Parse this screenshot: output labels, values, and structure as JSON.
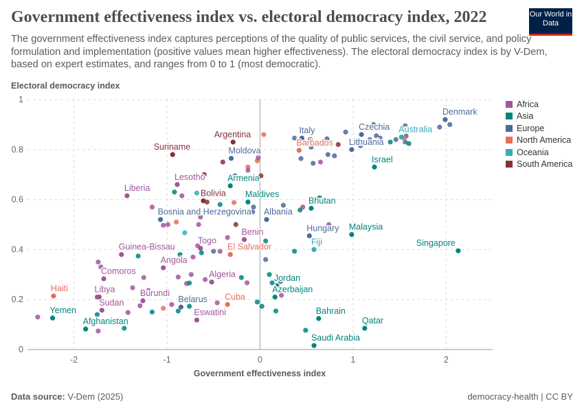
{
  "title": "Government effectiveness index vs. electoral democracy index, 2022",
  "subtitle": "The government effectiveness index captures perceptions of the quality of public services, the civil service, and policy formulation and implementation (positive values mean higher effectiveness). The electoral democracy index is by V-Dem, based on expert estimates, and ranges from 0 to 1 (most democratic).",
  "logo": "Our World in Data",
  "footer": {
    "source_label": "Data source:",
    "source": "V-Dem (2025)",
    "right": "democracy-health | CC BY"
  },
  "chart_data": {
    "type": "scatter",
    "xlabel": "Government effectiveness index",
    "ylabel": "Electoral democracy index",
    "xlim": [
      -2.5,
      2.5
    ],
    "ylim": [
      0,
      1
    ],
    "xticks": [
      "-2",
      "-1",
      "0",
      "1",
      "2"
    ],
    "xtick_values": [
      -2,
      -1,
      0,
      1,
      2
    ],
    "yticks": [
      "0",
      "0.2",
      "0.4",
      "0.6",
      "0.8",
      "1"
    ],
    "ytick_values": [
      0,
      0.2,
      0.4,
      0.6,
      0.8,
      1
    ],
    "grid": true,
    "legend_position": "right",
    "regions": [
      {
        "name": "Africa",
        "color": "#a2559c"
      },
      {
        "name": "Asia",
        "color": "#00847e"
      },
      {
        "name": "Europe",
        "color": "#4c6a9c"
      },
      {
        "name": "North America",
        "color": "#e56e5a"
      },
      {
        "name": "Oceania",
        "color": "#38aaba"
      },
      {
        "name": "South America",
        "color": "#883039"
      }
    ],
    "points": [
      {
        "label": "Denmark",
        "r": "Europe",
        "x": 1.99,
        "y": 0.92
      },
      {
        "label": "Italy",
        "r": "Europe",
        "x": 0.45,
        "y": 0.846
      },
      {
        "label": "Barbados",
        "r": "North America",
        "x": 0.42,
        "y": 0.797
      },
      {
        "label": "Czechia",
        "r": "Europe",
        "x": 1.09,
        "y": 0.86
      },
      {
        "label": "Lithuania",
        "r": "Europe",
        "x": 0.985,
        "y": 0.8
      },
      {
        "label": "Australia",
        "r": "Oceania",
        "x": 1.52,
        "y": 0.85
      },
      {
        "label": "Israel",
        "r": "Asia",
        "x": 1.23,
        "y": 0.73
      },
      {
        "label": "Argentina",
        "r": "South America",
        "x": -0.29,
        "y": 0.83
      },
      {
        "label": "Suriname",
        "r": "South America",
        "x": -0.94,
        "y": 0.78
      },
      {
        "label": "Moldova",
        "r": "Europe",
        "x": -0.31,
        "y": 0.765
      },
      {
        "label": "Lesotho",
        "r": "Africa",
        "x": -0.89,
        "y": 0.66
      },
      {
        "label": "Armenia",
        "r": "Asia",
        "x": -0.32,
        "y": 0.655
      },
      {
        "label": "Liberia",
        "r": "Africa",
        "x": -1.43,
        "y": 0.615
      },
      {
        "label": "Bolivia",
        "r": "South America",
        "x": -0.61,
        "y": 0.595
      },
      {
        "label": "Maldives",
        "r": "Asia",
        "x": -0.13,
        "y": 0.59
      },
      {
        "label": "Bhutan",
        "r": "Asia",
        "x": 0.55,
        "y": 0.565
      },
      {
        "label": "Bosnia and Herzegovina",
        "r": "Europe",
        "x": -1.07,
        "y": 0.52
      },
      {
        "label": "Albania",
        "r": "Europe",
        "x": 0.07,
        "y": 0.52
      },
      {
        "label": "Malaysia",
        "r": "Asia",
        "x": 0.985,
        "y": 0.46
      },
      {
        "label": "Hungary",
        "r": "Europe",
        "x": 0.53,
        "y": 0.455
      },
      {
        "label": "Benin",
        "r": "Africa",
        "x": -0.17,
        "y": 0.44
      },
      {
        "label": "Togo",
        "r": "Africa",
        "x": -0.64,
        "y": 0.405
      },
      {
        "label": "Singapore",
        "r": "Asia",
        "x": 2.13,
        "y": 0.395
      },
      {
        "label": "Fiji",
        "r": "Oceania",
        "x": 0.58,
        "y": 0.4
      },
      {
        "label": "Guinea-Bissau",
        "r": "Africa",
        "x": -1.49,
        "y": 0.38
      },
      {
        "label": "El Salvador",
        "r": "North America",
        "x": -0.32,
        "y": 0.38
      },
      {
        "label": "Angola",
        "r": "Africa",
        "x": -1.04,
        "y": 0.327
      },
      {
        "label": "Comoros",
        "r": "Africa",
        "x": -1.68,
        "y": 0.283
      },
      {
        "label": "Jordan",
        "r": "Asia",
        "x": 0.18,
        "y": 0.255
      },
      {
        "label": "Algeria",
        "r": "Africa",
        "x": -0.52,
        "y": 0.27
      },
      {
        "label": "Azerbaijan",
        "r": "Asia",
        "x": 0.16,
        "y": 0.21
      },
      {
        "label": "Haiti",
        "r": "North America",
        "x": -2.22,
        "y": 0.214
      },
      {
        "label": "Libya",
        "r": "Africa",
        "x": -1.75,
        "y": 0.21
      },
      {
        "label": "Burundi",
        "r": "Africa",
        "x": -1.26,
        "y": 0.195
      },
      {
        "label": "Cuba",
        "r": "North America",
        "x": -0.35,
        "y": 0.18
      },
      {
        "label": "Belarus",
        "r": "Europe",
        "x": -0.85,
        "y": 0.17
      },
      {
        "label": "Sudan",
        "r": "Africa",
        "x": -1.7,
        "y": 0.157
      },
      {
        "label": "Eswatini",
        "r": "Africa",
        "x": -0.68,
        "y": 0.118
      },
      {
        "label": "Yemen",
        "r": "Asia",
        "x": -2.23,
        "y": 0.126
      },
      {
        "label": "Bahrain",
        "r": "Asia",
        "x": 0.63,
        "y": 0.124
      },
      {
        "label": "Afghanistan",
        "r": "Asia",
        "x": -1.875,
        "y": 0.082
      },
      {
        "label": "Qatar",
        "r": "Asia",
        "x": 1.125,
        "y": 0.085
      },
      {
        "label": "Saudi Arabia",
        "r": "Asia",
        "x": 0.58,
        "y": 0.016
      },
      {
        "r": "Europe",
        "x": 2.04,
        "y": 0.9
      },
      {
        "r": "Europe",
        "x": 1.93,
        "y": 0.89
      },
      {
        "r": "Europe",
        "x": 1.56,
        "y": 0.895
      },
      {
        "r": "Europe",
        "x": 1.22,
        "y": 0.9
      },
      {
        "r": "Europe",
        "x": 1.33,
        "y": 0.895
      },
      {
        "r": "Europe",
        "x": 0.92,
        "y": 0.87
      },
      {
        "r": "Europe",
        "x": 1.25,
        "y": 0.855
      },
      {
        "r": "Europe",
        "x": 1.29,
        "y": 0.846
      },
      {
        "r": "Europe",
        "x": 1.18,
        "y": 0.84
      },
      {
        "r": "Europe",
        "x": 1.46,
        "y": 0.84
      },
      {
        "r": "Europe",
        "x": 1.57,
        "y": 0.854
      },
      {
        "r": "Europe",
        "x": 1.56,
        "y": 0.83
      },
      {
        "r": "Asia",
        "x": 1.4,
        "y": 0.83
      },
      {
        "r": "Asia",
        "x": 1.6,
        "y": 0.824
      },
      {
        "r": "Europe",
        "x": 1.08,
        "y": 0.815
      },
      {
        "r": "Europe",
        "x": 0.72,
        "y": 0.843
      },
      {
        "r": "Europe",
        "x": 0.37,
        "y": 0.846
      },
      {
        "r": "Europe",
        "x": 0.55,
        "y": 0.81
      },
      {
        "r": "Europe",
        "x": 0.73,
        "y": 0.78
      },
      {
        "r": "Europe",
        "x": 0.8,
        "y": 0.775
      },
      {
        "r": "Europe",
        "x": 0.44,
        "y": 0.764
      },
      {
        "r": "Europe",
        "x": 0.57,
        "y": 0.745
      },
      {
        "r": "South America",
        "x": 0.54,
        "y": 0.84
      },
      {
        "r": "South America",
        "x": 0.84,
        "y": 0.82
      },
      {
        "r": "Africa",
        "x": 0.65,
        "y": 0.75
      },
      {
        "r": "North America",
        "x": 1.55,
        "y": 0.845
      },
      {
        "r": "Europe",
        "x": 0.25,
        "y": 0.577
      },
      {
        "r": "Africa",
        "x": 0.46,
        "y": 0.57
      },
      {
        "r": "Asia",
        "x": 0.43,
        "y": 0.558
      },
      {
        "r": "Asia",
        "x": 0.64,
        "y": 0.607
      },
      {
        "r": "Africa",
        "x": 0.74,
        "y": 0.5
      },
      {
        "r": "Europe",
        "x": -0.08,
        "y": 0.55
      },
      {
        "r": "Africa",
        "x": 0.03,
        "y": 0.63
      },
      {
        "r": "South America",
        "x": 0.01,
        "y": 0.695
      },
      {
        "r": "North America",
        "x": -0.13,
        "y": 0.73
      },
      {
        "r": "North America",
        "x": -0.03,
        "y": 0.755
      },
      {
        "r": "Africa",
        "x": -0.02,
        "y": 0.767
      },
      {
        "r": "North America",
        "x": 0.04,
        "y": 0.86
      },
      {
        "r": "Africa",
        "x": -0.13,
        "y": 0.717
      },
      {
        "r": "South America",
        "x": -0.4,
        "y": 0.75
      },
      {
        "r": "South America",
        "x": -0.6,
        "y": 0.7
      },
      {
        "r": "Europe",
        "x": -0.27,
        "y": 0.695
      },
      {
        "r": "North America",
        "x": -0.07,
        "y": 0.687
      },
      {
        "r": "North America",
        "x": -0.28,
        "y": 0.588
      },
      {
        "r": "Europe",
        "x": -0.07,
        "y": 0.57
      },
      {
        "r": "Africa",
        "x": -0.84,
        "y": 0.615
      },
      {
        "r": "Asia",
        "x": -0.92,
        "y": 0.63
      },
      {
        "r": "Oceania",
        "x": -0.68,
        "y": 0.626
      },
      {
        "r": "Asia",
        "x": -0.43,
        "y": 0.58
      },
      {
        "r": "South America",
        "x": -0.57,
        "y": 0.59
      },
      {
        "r": "Africa",
        "x": -1.16,
        "y": 0.57
      },
      {
        "r": "Africa",
        "x": -0.66,
        "y": 0.5
      },
      {
        "r": "Africa",
        "x": -0.64,
        "y": 0.53
      },
      {
        "r": "Africa",
        "x": -1.04,
        "y": 0.497
      },
      {
        "r": "Africa",
        "x": -0.99,
        "y": 0.5
      },
      {
        "r": "North America",
        "x": -0.9,
        "y": 0.51
      },
      {
        "r": "South America",
        "x": -0.26,
        "y": 0.5
      },
      {
        "r": "Oceania",
        "x": -0.81,
        "y": 0.467
      },
      {
        "r": "Africa",
        "x": -0.35,
        "y": 0.448
      },
      {
        "r": "Asia",
        "x": 0.06,
        "y": 0.434
      },
      {
        "r": "Africa",
        "x": -0.67,
        "y": 0.415
      },
      {
        "r": "Africa",
        "x": -0.72,
        "y": 0.37
      },
      {
        "r": "Asia",
        "x": -0.63,
        "y": 0.387
      },
      {
        "r": "Europe",
        "x": -0.5,
        "y": 0.393
      },
      {
        "r": "Africa",
        "x": -0.43,
        "y": 0.393
      },
      {
        "r": "Asia",
        "x": -0.86,
        "y": 0.38
      },
      {
        "r": "Asia",
        "x": -1.31,
        "y": 0.374
      },
      {
        "r": "Asia",
        "x": 0.37,
        "y": 0.393
      },
      {
        "r": "Europe",
        "x": 0.06,
        "y": 0.36
      },
      {
        "r": "Africa",
        "x": -1.74,
        "y": 0.35
      },
      {
        "r": "Africa",
        "x": -1.71,
        "y": 0.33
      },
      {
        "r": "Africa",
        "x": -1.25,
        "y": 0.288
      },
      {
        "r": "Africa",
        "x": -0.88,
        "y": 0.29
      },
      {
        "r": "Africa",
        "x": -0.74,
        "y": 0.3
      },
      {
        "r": "Africa",
        "x": -0.79,
        "y": 0.264
      },
      {
        "r": "Asia",
        "x": -0.76,
        "y": 0.266
      },
      {
        "r": "Africa",
        "x": -0.59,
        "y": 0.28
      },
      {
        "r": "Africa",
        "x": -1.37,
        "y": 0.247
      },
      {
        "r": "Africa",
        "x": -1.2,
        "y": 0.236
      },
      {
        "r": "Africa",
        "x": -0.39,
        "y": 0.3
      },
      {
        "r": "Asia",
        "x": -0.2,
        "y": 0.288
      },
      {
        "r": "Africa",
        "x": -0.14,
        "y": 0.267
      },
      {
        "r": "Asia",
        "x": 0.1,
        "y": 0.3
      },
      {
        "r": "Asia",
        "x": 0.13,
        "y": 0.267
      },
      {
        "r": "Europe",
        "x": 0.22,
        "y": 0.272
      },
      {
        "r": "Africa",
        "x": 0.23,
        "y": 0.217
      },
      {
        "r": "Asia",
        "x": -0.03,
        "y": 0.19
      },
      {
        "r": "Asia",
        "x": 0.02,
        "y": 0.173
      },
      {
        "r": "Asia",
        "x": 0.17,
        "y": 0.154
      },
      {
        "r": "Africa",
        "x": -0.46,
        "y": 0.187
      },
      {
        "r": "North America",
        "x": -1.04,
        "y": 0.165
      },
      {
        "r": "Africa",
        "x": -0.95,
        "y": 0.18
      },
      {
        "r": "Asia",
        "x": -0.76,
        "y": 0.173
      },
      {
        "r": "Asia",
        "x": -0.88,
        "y": 0.154
      },
      {
        "r": "Asia",
        "x": -1.16,
        "y": 0.15
      },
      {
        "r": "Africa",
        "x": -1.42,
        "y": 0.148
      },
      {
        "r": "Africa",
        "x": -1.29,
        "y": 0.175
      },
      {
        "r": "Africa",
        "x": -2.39,
        "y": 0.13
      },
      {
        "r": "Africa",
        "x": -2.02,
        "y": 0.16
      },
      {
        "r": "Asia",
        "x": -1.75,
        "y": 0.14
      },
      {
        "r": "Africa",
        "x": -1.74,
        "y": 0.074
      },
      {
        "r": "Asia",
        "x": -1.46,
        "y": 0.085
      },
      {
        "r": "Asia",
        "x": 0.49,
        "y": 0.077
      },
      {
        "r": "South America",
        "x": -1.73,
        "y": 0.21
      }
    ]
  }
}
